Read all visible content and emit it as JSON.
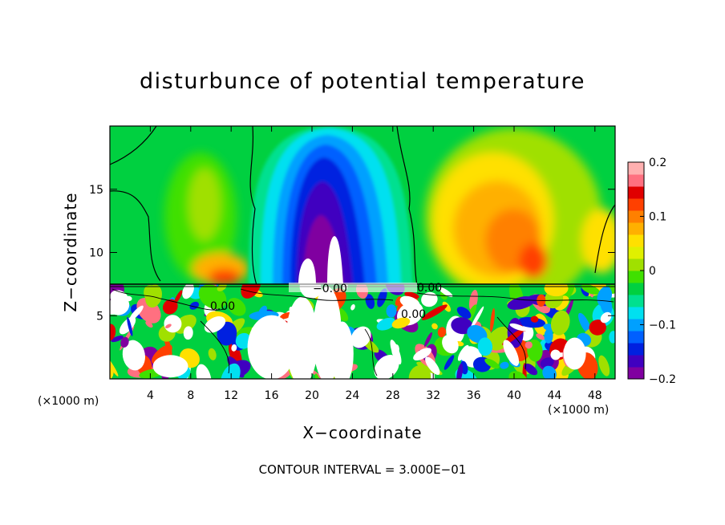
{
  "chart_data": {
    "type": "heatmap",
    "title": "disturbunce of potential temperature",
    "xlabel": "X−coordinate",
    "ylabel": "Z−coordinate",
    "x_unit": "(×1000 m)",
    "xlim": [
      0,
      50
    ],
    "ylim": [
      0,
      20
    ],
    "x_ticks": [
      4,
      8,
      12,
      16,
      20,
      24,
      28,
      32,
      36,
      40,
      44,
      48
    ],
    "y_ticks": [
      5,
      10,
      15
    ],
    "colorbar": {
      "min": -0.2,
      "max": 0.2,
      "tick_values": [
        0.2,
        0.1,
        0,
        -0.1,
        -0.2
      ],
      "tick_labels": [
        "0.2",
        "0.1",
        "0",
        "−0.1",
        "−0.2"
      ],
      "colors": [
        "#8000a0",
        "#4000c0",
        "#0020e0",
        "#0060ff",
        "#00a0ff",
        "#00e0f0",
        "#00e090",
        "#00d040",
        "#40e000",
        "#a0e000",
        "#e0f000",
        "#ffe000",
        "#ffb000",
        "#ff8000",
        "#ff4000",
        "#e00000",
        "#ff7080",
        "#ffb0b0"
      ]
    },
    "contour_labels": [
      "0.00",
      "0.00",
      "0.00",
      "−0.00"
    ],
    "contour_interval_text": "CONTOUR INTERVAL = 3.000E−01",
    "features": [
      {
        "name": "cold anomaly",
        "x_center": 22,
        "z_top": 19.5,
        "min_value": -0.2
      },
      {
        "name": "warm anomaly",
        "x_center": 40,
        "z_center": 12,
        "max_value": 0.13
      }
    ]
  }
}
